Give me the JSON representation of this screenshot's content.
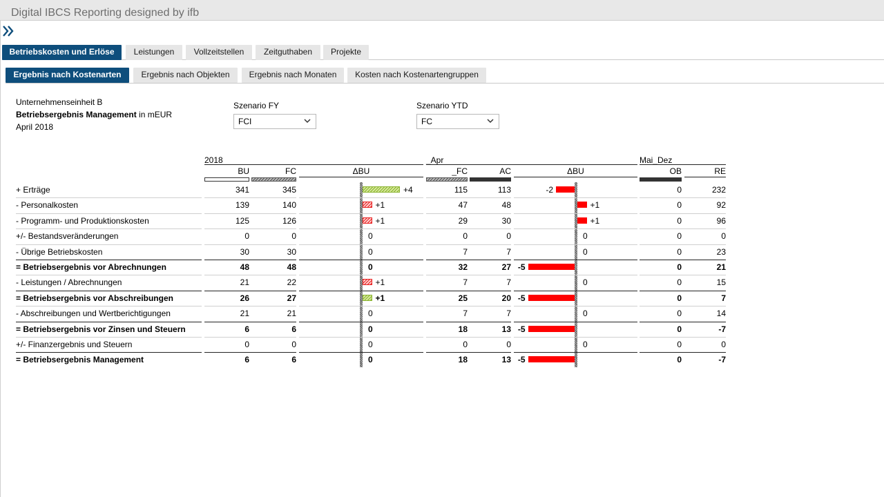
{
  "app": {
    "title": "Digital IBCS Reporting designed by ifb"
  },
  "nav": {
    "icon": "double-chevron-right-icon"
  },
  "tabs_main": [
    {
      "label": "Betriebskosten und Erlöse",
      "active": true
    },
    {
      "label": "Leistungen",
      "active": false
    },
    {
      "label": "Vollzeitstellen",
      "active": false
    },
    {
      "label": "Zeitguthaben",
      "active": false
    },
    {
      "label": "Projekte",
      "active": false
    }
  ],
  "tabs_sub": [
    {
      "label": "Ergebnis nach Kostenarten",
      "active": true
    },
    {
      "label": "Ergebnis nach Objekten",
      "active": false
    },
    {
      "label": "Ergebnis nach Monaten",
      "active": false
    },
    {
      "label": "Kosten nach Kostenartengruppen",
      "active": false
    }
  ],
  "report": {
    "unit": "Unternehmenseinheit B",
    "title_bold": "Betriebsergebnis Management",
    "title_suffix": " in mEUR",
    "period": "April 2018"
  },
  "scenario_fy": {
    "label": "Szenario FY",
    "value": "FCI"
  },
  "scenario_ytd": {
    "label": "Szenario YTD",
    "value": "FC"
  },
  "groups": {
    "g1": "2018",
    "g2": "_Apr",
    "g3": "Mai_Dez"
  },
  "columns": {
    "bu": "BU",
    "fc": "FC",
    "dbu1": "ΔBU",
    "fc2": "_FC",
    "ac": "AC",
    "dbu2": "ΔBU",
    "ob": "OB",
    "re": "RE"
  },
  "colors": {
    "accent": "#0e4e7c",
    "positive": "#8ab32f",
    "negative": "#ff0000"
  },
  "rows": [
    {
      "label": "+ Erträge",
      "bold": false,
      "bu": "341",
      "fc": "345",
      "d1": 4,
      "d1_label": "+4",
      "fc2": "115",
      "ac": "113",
      "d2": -2,
      "d2_label": "-2",
      "ob": "0",
      "re": "232"
    },
    {
      "label": "- Personalkosten",
      "bold": false,
      "bu": "139",
      "fc": "140",
      "d1": -1,
      "d1_label": "+1",
      "fc2": "47",
      "ac": "48",
      "d2": -1,
      "d2_label": "+1",
      "ob": "0",
      "re": "92"
    },
    {
      "label": "- Programm- und Produktionskosten",
      "bold": false,
      "bu": "125",
      "fc": "126",
      "d1": -1,
      "d1_label": "+1",
      "fc2": "29",
      "ac": "30",
      "d2": -1,
      "d2_label": "+1",
      "ob": "0",
      "re": "96"
    },
    {
      "label": "+/- Bestandsveränderungen",
      "bold": false,
      "bu": "0",
      "fc": "0",
      "d1": 0,
      "d1_label": "0",
      "fc2": "0",
      "ac": "0",
      "d2": 0,
      "d2_label": "0",
      "ob": "0",
      "re": "0"
    },
    {
      "label": "- Übrige Betriebskosten",
      "bold": false,
      "bu": "30",
      "fc": "30",
      "d1": 0,
      "d1_label": "0",
      "fc2": "7",
      "ac": "7",
      "d2": 0,
      "d2_label": "0",
      "ob": "0",
      "re": "23"
    },
    {
      "label": "= Betriebsergebnis vor Abrechnungen",
      "bold": true,
      "bu": "48",
      "fc": "48",
      "d1": 0,
      "d1_label": "0",
      "fc2": "32",
      "ac": "27",
      "d2": -5,
      "d2_label": "-5",
      "ob": "0",
      "re": "21"
    },
    {
      "label": "- Leistungen / Abrechnungen",
      "bold": false,
      "bu": "21",
      "fc": "22",
      "d1": -1,
      "d1_label": "+1",
      "fc2": "7",
      "ac": "7",
      "d2": 0,
      "d2_label": "0",
      "ob": "0",
      "re": "15"
    },
    {
      "label": "= Betriebsergebnis vor Abschreibungen",
      "bold": true,
      "bu": "26",
      "fc": "27",
      "d1": 1,
      "d1_label": "+1",
      "fc2": "25",
      "ac": "20",
      "d2": -5,
      "d2_label": "-5",
      "ob": "0",
      "re": "7"
    },
    {
      "label": "- Abschreibungen und Wertberichtigungen",
      "bold": false,
      "bu": "21",
      "fc": "21",
      "d1": 0,
      "d1_label": "0",
      "fc2": "7",
      "ac": "7",
      "d2": 0,
      "d2_label": "0",
      "ob": "0",
      "re": "14"
    },
    {
      "label": "= Betriebsergebnis vor Zinsen und Steuern",
      "bold": true,
      "bu": "6",
      "fc": "6",
      "d1": 0,
      "d1_label": "0",
      "fc2": "18",
      "ac": "13",
      "d2": -5,
      "d2_label": "-5",
      "ob": "0",
      "re": "-7"
    },
    {
      "label": "+/- Finanzergebnis und Steuern",
      "bold": false,
      "bu": "0",
      "fc": "0",
      "d1": 0,
      "d1_label": "0",
      "fc2": "0",
      "ac": "0",
      "d2": 0,
      "d2_label": "0",
      "ob": "0",
      "re": "0"
    },
    {
      "label": "= Betriebsergebnis Management",
      "bold": true,
      "bu": "6",
      "fc": "6",
      "d1": 0,
      "d1_label": "0",
      "fc2": "18",
      "ac": "13",
      "d2": -5,
      "d2_label": "-5",
      "ob": "0",
      "re": "-7"
    }
  ]
}
